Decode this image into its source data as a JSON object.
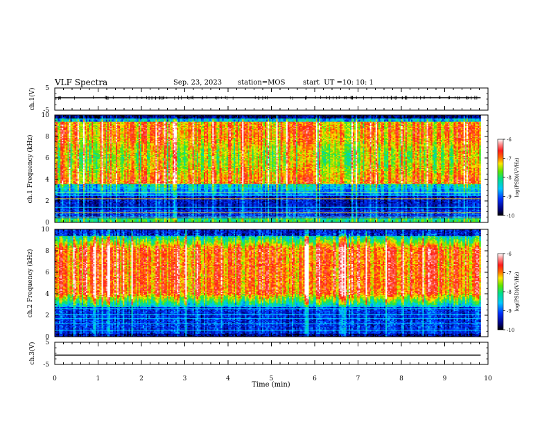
{
  "header": {
    "title": "VLF Spectra",
    "date": "Sep. 23, 2023",
    "station": "station=MOS",
    "start_label": "start  UT =",
    "start_time": "10: 10: 1"
  },
  "chart_data": [
    {
      "type": "line",
      "panel": "ch1-voltage",
      "ylabel": "ch.1(V)",
      "ylim": [
        -5,
        5
      ],
      "yticks": [
        "5",
        "-5"
      ],
      "x_range": [
        0,
        9.83
      ],
      "series": [
        {
          "values": [
            [
              0,
              0.6
            ],
            [
              0.5,
              0.55
            ],
            [
              1,
              0.6
            ],
            [
              1.5,
              0.58
            ],
            [
              2,
              0.6
            ],
            [
              2.5,
              0.55
            ],
            [
              3,
              0.6
            ],
            [
              3.5,
              0.6
            ],
            [
              4,
              0.62
            ],
            [
              4.5,
              0.58
            ],
            [
              5,
              0.6
            ],
            [
              5.5,
              0.6
            ],
            [
              6,
              0.58
            ],
            [
              6.5,
              0.6
            ],
            [
              7,
              0.6
            ],
            [
              7.5,
              0.58
            ],
            [
              8,
              0.6
            ],
            [
              8.5,
              0.6
            ],
            [
              9,
              0.6
            ],
            [
              9.5,
              0.58
            ],
            [
              9.83,
              0.6
            ]
          ]
        }
      ]
    },
    {
      "type": "heatmap",
      "panel": "ch1-spectrogram",
      "ylabel": "ch.1  Frequency (kHz)",
      "ylim": [
        0,
        10
      ],
      "yticks": [
        "0",
        "2",
        "4",
        "6",
        "8",
        "10"
      ],
      "x_range": [
        0,
        9.83
      ],
      "description_levels": {
        "0-0.4 kHz": -8.0,
        "0.4-1.2 kHz": -9.2,
        "1.2-3.5 kHz": -9.3,
        "3.5-9.5 kHz": -7.2,
        "9.5-10 kHz": -9.5
      },
      "colorbar": {
        "label": "log(PSD)(V²/Hz)",
        "ticks": [
          "-6",
          "-7",
          "-8",
          "-9",
          "-10"
        ],
        "range": [
          -10,
          -6
        ]
      }
    },
    {
      "type": "heatmap",
      "panel": "ch2-spectrogram",
      "ylabel": "ch.2  Frequency (kHz)",
      "ylim": [
        0,
        10
      ],
      "yticks": [
        "0",
        "2",
        "4",
        "6",
        "8",
        "10"
      ],
      "x_range": [
        0,
        9.83
      ],
      "description_levels": {
        "0-0.4 kHz": -9.0,
        "0.4-3.5 kHz": -9.0,
        "3.5-8.5 kHz": -6.8,
        "8.5-9.5 kHz": -8.0,
        "9.5-10 kHz": -9.3
      },
      "colorbar": {
        "label": "log(PSD)(V²/Hz)",
        "ticks": [
          "-6",
          "-7",
          "-8",
          "-9",
          "-10"
        ],
        "range": [
          -10,
          -6
        ]
      }
    },
    {
      "type": "line",
      "panel": "ch3-voltage",
      "ylabel": "ch.3(V)",
      "ylim": [
        -5,
        5
      ],
      "yticks": [
        "5",
        "-5"
      ],
      "x_range": [
        0,
        9.83
      ],
      "series": [
        {
          "values": [
            [
              0,
              -0.8
            ],
            [
              9.83,
              -0.8
            ]
          ]
        }
      ]
    }
  ],
  "xaxis": {
    "label": "Time  (min)",
    "ticks": [
      "0",
      "1",
      "2",
      "3",
      "4",
      "5",
      "6",
      "7",
      "8",
      "9",
      "10"
    ],
    "range": [
      0,
      10
    ]
  }
}
